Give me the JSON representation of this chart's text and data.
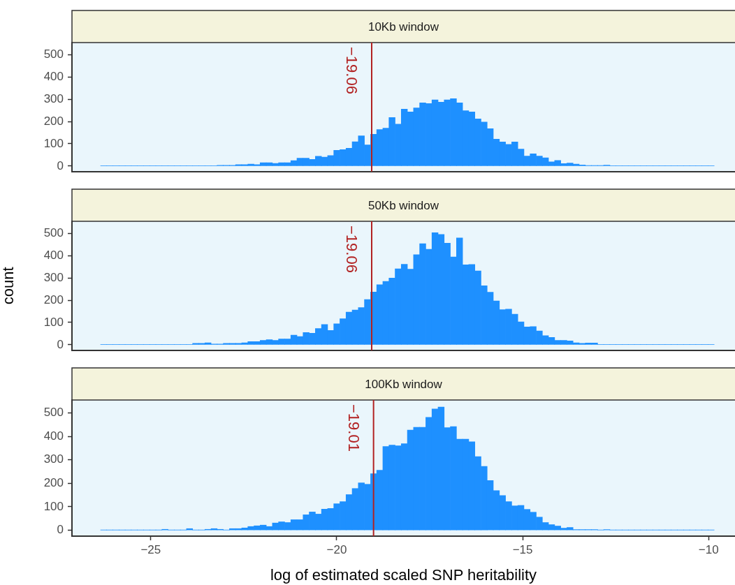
{
  "chart_data": [
    {
      "type": "histogram",
      "title": "10Kb window",
      "color": "#1e90ff",
      "grid": false,
      "tick_labels": "y",
      "xlim": [
        -27.12,
        -9.29
      ],
      "ylim": [
        -25,
        555
      ],
      "yticks": [
        0,
        100,
        200,
        300,
        400,
        500
      ],
      "ref_lines": [
        {
          "axis": "x",
          "value": -19.06,
          "label": "−19.06",
          "color": "#b22222"
        }
      ],
      "bins": [
        -26.35,
        -26.185,
        -26.02,
        -25.855,
        -25.69,
        -25.525,
        -25.36,
        -25.195,
        -25.03,
        -24.865,
        -24.7,
        -24.535,
        -24.37,
        -24.205,
        -24.04,
        -23.875,
        -23.71,
        -23.545,
        -23.38,
        -23.215,
        -23.05,
        -22.885,
        -22.72,
        -22.555,
        -22.39,
        -22.225,
        -22.06,
        -21.895,
        -21.73,
        -21.565,
        -21.4,
        -21.235,
        -21.07,
        -20.905,
        -20.74,
        -20.575,
        -20.41,
        -20.245,
        -20.08,
        -19.915,
        -19.75,
        -19.585,
        -19.42,
        -19.255,
        -19.09,
        -18.925,
        -18.76,
        -18.595,
        -18.43,
        -18.265,
        -18.1,
        -17.935,
        -17.77,
        -17.605,
        -17.44,
        -17.275,
        -17.11,
        -16.945,
        -16.78,
        -16.615,
        -16.45,
        -16.285,
        -16.12,
        -15.955,
        -15.79,
        -15.625,
        -15.46,
        -15.295,
        -15.13,
        -14.965,
        -14.8,
        -14.635,
        -14.47,
        -14.305,
        -14.14,
        -13.975,
        -13.81,
        -13.645,
        -13.48,
        -13.315,
        -13.15,
        -12.985,
        -12.82,
        -12.655,
        -12.49,
        -12.325,
        -12.16,
        -11.995,
        -11.83,
        -11.665,
        -11.5,
        -11.335,
        -11.17,
        -11.005,
        -10.84,
        -10.675,
        -10.51,
        -10.345,
        -10.18,
        -10.015,
        -9.85
      ],
      "values": [
        1,
        1,
        1,
        1,
        1,
        1,
        1,
        1,
        1,
        1,
        1,
        1,
        1,
        1,
        1,
        1,
        1,
        1,
        1,
        3,
        3,
        3,
        6,
        6,
        9,
        6,
        15,
        15,
        12,
        15,
        15,
        24,
        35,
        35,
        30,
        44,
        40,
        47,
        71,
        74,
        80,
        109,
        136,
        95,
        143,
        164,
        170,
        218,
        188,
        256,
        243,
        261,
        284,
        281,
        297,
        287,
        297,
        303,
        284,
        249,
        243,
        212,
        198,
        168,
        121,
        108,
        97,
        108,
        76,
        45,
        55,
        45,
        37,
        19,
        25,
        11,
        13,
        9,
        5,
        2,
        2,
        2,
        4,
        1,
        1,
        1,
        1,
        1,
        1,
        1,
        1,
        1,
        1,
        1,
        1,
        1,
        1,
        1,
        1,
        1
      ]
    },
    {
      "type": "histogram",
      "title": "50Kb window",
      "ylabel": "count",
      "color": "#1e90ff",
      "grid": false,
      "tick_labels": "y",
      "xlim": [
        -27.12,
        -9.29
      ],
      "ylim": [
        -25,
        555
      ],
      "yticks": [
        0,
        100,
        200,
        300,
        400,
        500
      ],
      "ref_lines": [
        {
          "axis": "x",
          "value": -19.06,
          "label": "−19.06",
          "color": "#b22222"
        }
      ],
      "bins": [
        -26.35,
        -26.185,
        -26.02,
        -25.855,
        -25.69,
        -25.525,
        -25.36,
        -25.195,
        -25.03,
        -24.865,
        -24.7,
        -24.535,
        -24.37,
        -24.205,
        -24.04,
        -23.875,
        -23.71,
        -23.545,
        -23.38,
        -23.215,
        -23.05,
        -22.885,
        -22.72,
        -22.555,
        -22.39,
        -22.225,
        -22.06,
        -21.895,
        -21.73,
        -21.565,
        -21.4,
        -21.235,
        -21.07,
        -20.905,
        -20.74,
        -20.575,
        -20.41,
        -20.245,
        -20.08,
        -19.915,
        -19.75,
        -19.585,
        -19.42,
        -19.255,
        -19.09,
        -18.925,
        -18.76,
        -18.595,
        -18.43,
        -18.265,
        -18.1,
        -17.935,
        -17.77,
        -17.605,
        -17.44,
        -17.275,
        -17.11,
        -16.945,
        -16.78,
        -16.615,
        -16.45,
        -16.285,
        -16.12,
        -15.955,
        -15.79,
        -15.625,
        -15.46,
        -15.295,
        -15.13,
        -14.965,
        -14.8,
        -14.635,
        -14.47,
        -14.305,
        -14.14,
        -13.975,
        -13.81,
        -13.645,
        -13.48,
        -13.315,
        -13.15,
        -12.985,
        -12.82,
        -12.655,
        -12.49,
        -12.325,
        -12.16,
        -11.995,
        -11.83,
        -11.665,
        -11.5,
        -11.335,
        -11.17,
        -11.005,
        -10.84,
        -10.675,
        -10.51,
        -10.345,
        -10.18,
        -10.015,
        -9.85
      ],
      "values": [
        1,
        1,
        1,
        1,
        1,
        1,
        1,
        1,
        1,
        1,
        1,
        1,
        1,
        1,
        1,
        6,
        6,
        9,
        3,
        3,
        6,
        6,
        6,
        9,
        14,
        14,
        20,
        23,
        20,
        26,
        26,
        43,
        37,
        55,
        52,
        73,
        91,
        64,
        94,
        117,
        147,
        156,
        167,
        203,
        237,
        270,
        285,
        300,
        341,
        362,
        340,
        405,
        454,
        429,
        504,
        496,
        457,
        395,
        480,
        359,
        361,
        332,
        265,
        236,
        197,
        158,
        160,
        137,
        103,
        80,
        82,
        62,
        41,
        33,
        20,
        20,
        17,
        9,
        6,
        8,
        8,
        1,
        1,
        1,
        1,
        1,
        1,
        1,
        1,
        1,
        1,
        1,
        1,
        1,
        1,
        1,
        1,
        1,
        1,
        1
      ]
    },
    {
      "type": "histogram",
      "title": "100Kb window",
      "xlabel": "log of estimated scaled SNP heritability",
      "color": "#1e90ff",
      "grid": false,
      "xlim": [
        -27.12,
        -9.29
      ],
      "xticks": [
        {
          "value": -25,
          "label": "−25"
        },
        {
          "value": -20,
          "label": "−20"
        },
        {
          "value": -15,
          "label": "−15"
        },
        {
          "value": -10,
          "label": "−10"
        }
      ],
      "ylim": [
        -25,
        555
      ],
      "yticks": [
        0,
        100,
        200,
        300,
        400,
        500
      ],
      "ref_lines": [
        {
          "axis": "x",
          "value": -19.01,
          "label": "−19.01",
          "color": "#b22222"
        }
      ],
      "bins": [
        -26.35,
        -26.185,
        -26.02,
        -25.855,
        -25.69,
        -25.525,
        -25.36,
        -25.195,
        -25.03,
        -24.865,
        -24.7,
        -24.535,
        -24.37,
        -24.205,
        -24.04,
        -23.875,
        -23.71,
        -23.545,
        -23.38,
        -23.215,
        -23.05,
        -22.885,
        -22.72,
        -22.555,
        -22.39,
        -22.225,
        -22.06,
        -21.895,
        -21.73,
        -21.565,
        -21.4,
        -21.235,
        -21.07,
        -20.905,
        -20.74,
        -20.575,
        -20.41,
        -20.245,
        -20.08,
        -19.915,
        -19.75,
        -19.585,
        -19.42,
        -19.255,
        -19.09,
        -18.925,
        -18.76,
        -18.595,
        -18.43,
        -18.265,
        -18.1,
        -17.935,
        -17.77,
        -17.605,
        -17.44,
        -17.275,
        -17.11,
        -16.945,
        -16.78,
        -16.615,
        -16.45,
        -16.285,
        -16.12,
        -15.955,
        -15.79,
        -15.625,
        -15.46,
        -15.295,
        -15.13,
        -14.965,
        -14.8,
        -14.635,
        -14.47,
        -14.305,
        -14.14,
        -13.975,
        -13.81,
        -13.645,
        -13.48,
        -13.315,
        -13.15,
        -12.985,
        -12.82,
        -12.655,
        -12.49,
        -12.325,
        -12.16,
        -11.995,
        -11.83,
        -11.665,
        -11.5,
        -11.335,
        -11.17,
        -11.005,
        -10.84,
        -10.675,
        -10.51,
        -10.345,
        -10.18,
        -10.015,
        -9.85
      ],
      "values": [
        1,
        1,
        1,
        1,
        1,
        1,
        1,
        1,
        1,
        1,
        4,
        1,
        1,
        1,
        7,
        1,
        1,
        4,
        7,
        4,
        1,
        7,
        7,
        10,
        16,
        19,
        22,
        16,
        31,
        36,
        33,
        45,
        45,
        66,
        78,
        69,
        90,
        93,
        113,
        122,
        152,
        178,
        202,
        196,
        241,
        256,
        357,
        363,
        360,
        369,
        427,
        439,
        439,
        481,
        517,
        525,
        437,
        442,
        388,
        388,
        377,
        314,
        272,
        212,
        169,
        148,
        122,
        104,
        106,
        89,
        77,
        56,
        33,
        24,
        18,
        9,
        12,
        3,
        3,
        3,
        3,
        1,
        3,
        1,
        1,
        1,
        1,
        1,
        1,
        1,
        1,
        1,
        1,
        1,
        1,
        1,
        1,
        1,
        1,
        1
      ]
    }
  ]
}
